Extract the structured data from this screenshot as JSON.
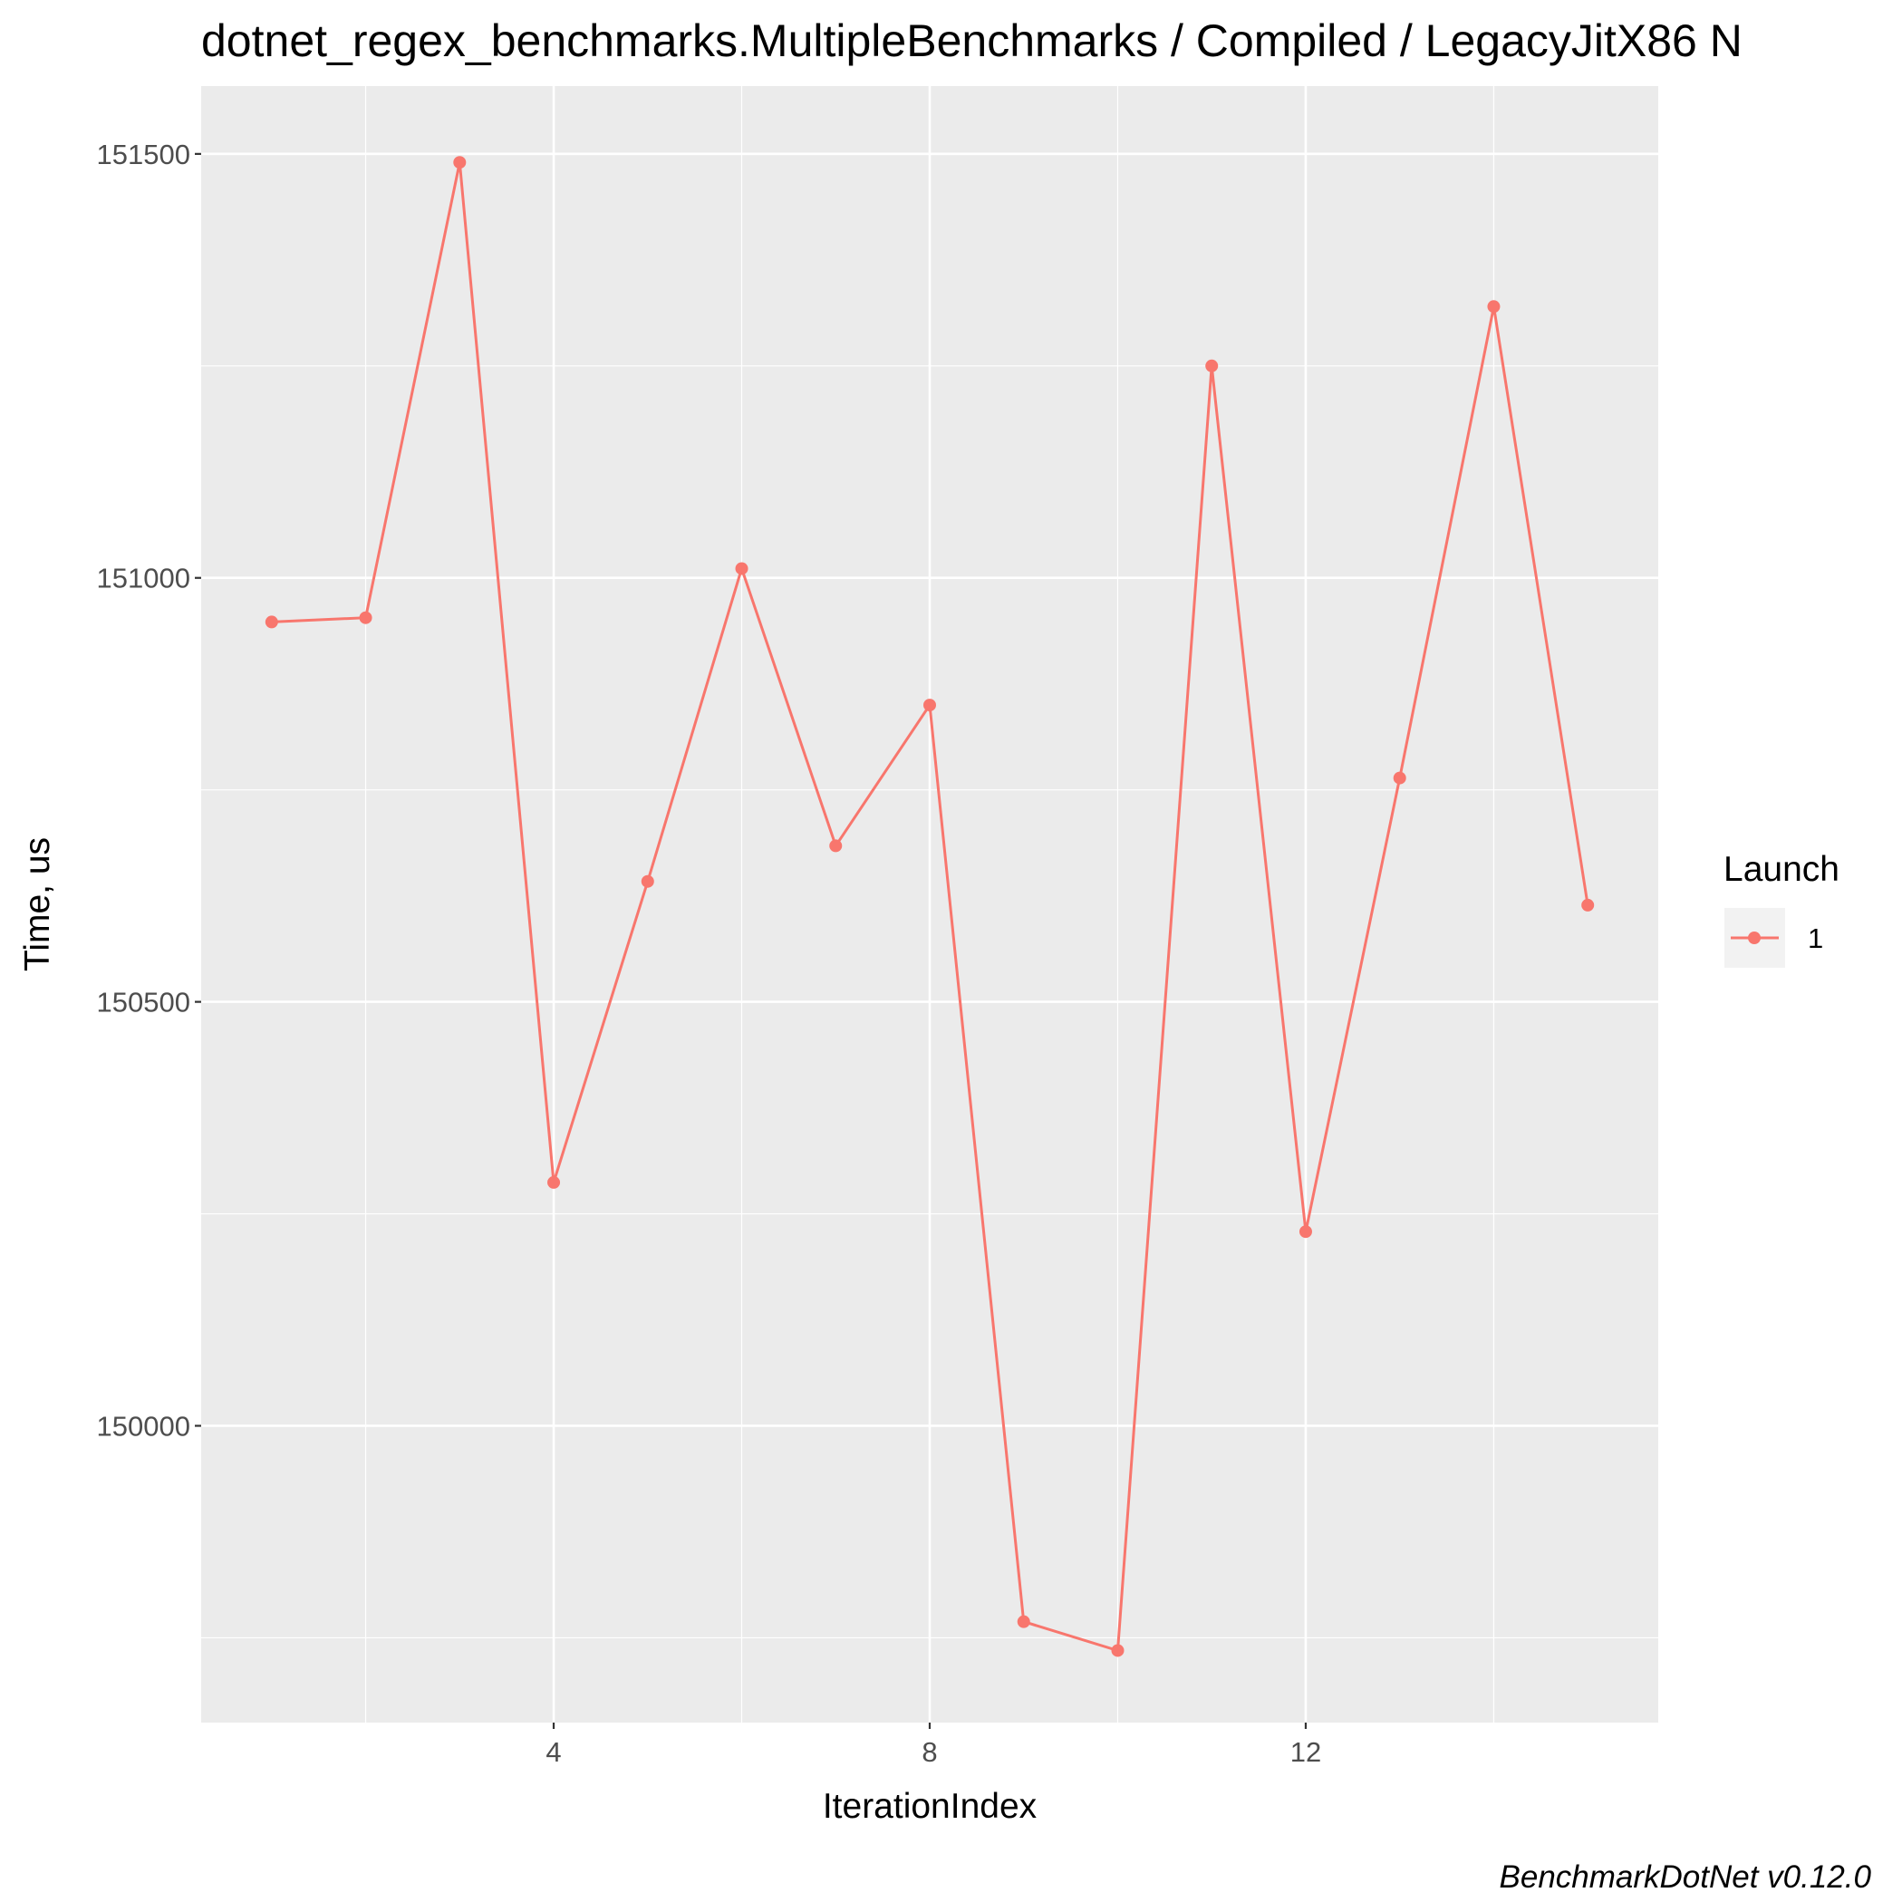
{
  "chart_data": {
    "type": "line",
    "title": "dotnet_regex_benchmarks.MultipleBenchmarks / Compiled / LegacyJitX86 N",
    "xlabel": "IterationIndex",
    "ylabel": "Time, us",
    "caption": "BenchmarkDotNet v0.12.0",
    "xlim": [
      0.25,
      15.75
    ],
    "ylim": [
      149650,
      151580
    ],
    "x_ticks": [
      4,
      8,
      12
    ],
    "x_tick_labels": [
      "4",
      "8",
      "12"
    ],
    "x_minor_ticks": [
      2,
      6,
      10,
      14
    ],
    "y_ticks": [
      150000,
      150500,
      151000,
      151500
    ],
    "y_tick_labels": [
      "150000",
      "150500",
      "151000",
      "151500"
    ],
    "y_minor_ticks": [
      149750,
      150250,
      150750,
      151250
    ],
    "grid": true,
    "legend": {
      "title": "Launch",
      "position": "right"
    },
    "series": [
      {
        "name": "1",
        "color": "#F8766D",
        "x": [
          1,
          2,
          3,
          4,
          5,
          6,
          7,
          8,
          9,
          10,
          11,
          12,
          13,
          14,
          15
        ],
        "y": [
          150948,
          150953,
          151490,
          150287,
          150642,
          151011,
          150684,
          150850,
          149769,
          149735,
          151250,
          150229,
          150764,
          151320,
          150614
        ]
      }
    ]
  }
}
